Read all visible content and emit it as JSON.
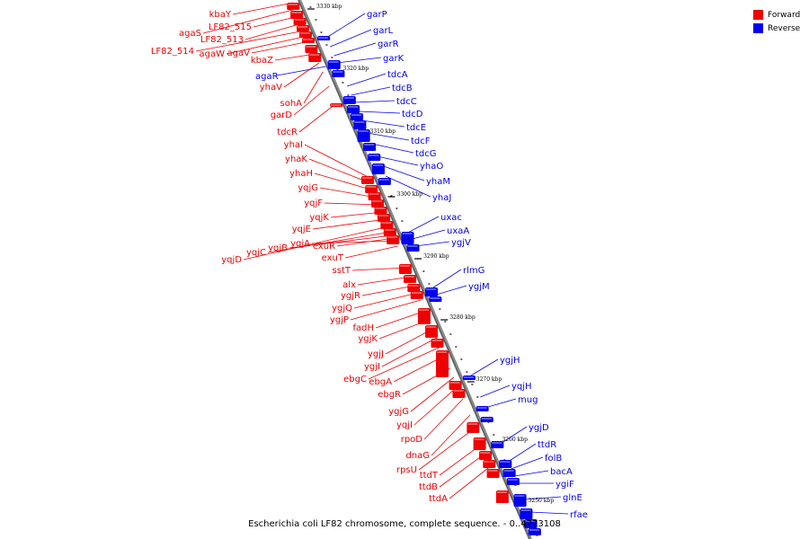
{
  "colors": {
    "forward": "#ee0000",
    "reverse": "#0000ee",
    "axis": "#888888"
  },
  "legend": [
    {
      "label": "Forward",
      "color": "#ee0000"
    },
    {
      "label": "Reverse",
      "color": "#0000ee"
    }
  ],
  "caption": "Escherichia coli LF82 chromosome, complete sequence. - 0..4773108",
  "ticks": [
    "3330 kbp",
    "3320 kbp",
    "3310 kbp",
    "3300 kbp",
    "3290 kbp",
    "3280 kbp",
    "3270 kbp",
    "3260 kbp",
    "3250 kbp"
  ],
  "forward_labels": [
    "kbaY",
    "agaS",
    "LF82_515",
    "LF82_513",
    "LF82_514",
    "agaW",
    "agaV",
    "kbaZ",
    "yhaV",
    "sohA",
    "garD",
    "tdcR",
    "yhaI",
    "yhaK",
    "yhaH",
    "yqjG",
    "yqjF",
    "yqjK",
    "yqjE",
    "yqjD",
    "yqjC",
    "yqjB",
    "yqjA",
    "exuR",
    "exuT",
    "sstT",
    "alx",
    "ygjR",
    "ygjQ",
    "ygjP",
    "fadH",
    "ygjK",
    "ygjJ",
    "ygjI",
    "ebgC",
    "ebgA",
    "ebgR",
    "ygjG",
    "yqjI",
    "rpoD",
    "dnaG",
    "rpsU",
    "ttdT",
    "ttdB",
    "ttdA"
  ],
  "reverse_labels": [
    "garP",
    "garL",
    "garR",
    "garK",
    "agaR",
    "tdcA",
    "tdcB",
    "tdcC",
    "tdcD",
    "tdcE",
    "tdcF",
    "tdcG",
    "yhaO",
    "yhaM",
    "yhaJ",
    "uxac",
    "uxaA",
    "ygjV",
    "rlmG",
    "ygjM",
    "ygjH",
    "yqjH",
    "mug",
    "ygjD",
    "ttdR",
    "folB",
    "bacA",
    "ygiF",
    "glnE",
    "rfae"
  ]
}
